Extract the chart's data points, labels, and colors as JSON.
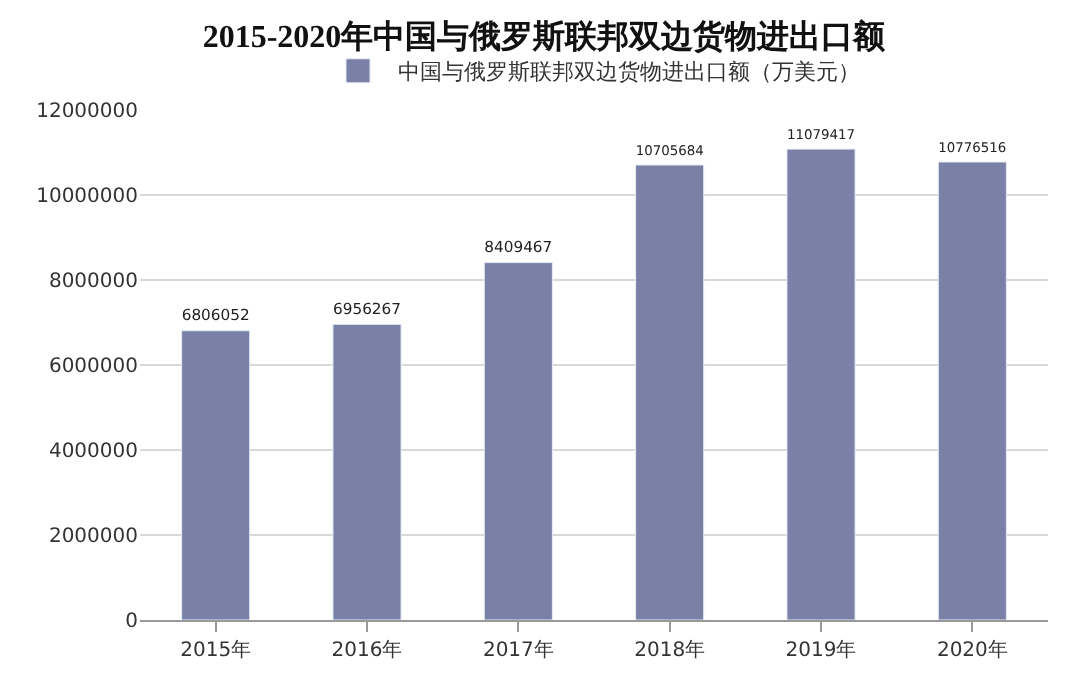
{
  "chart_data": {
    "type": "bar",
    "title": "2015-2020年中国与俄罗斯联邦双边货物进出口额",
    "categories": [
      "2015年",
      "2016年",
      "2017年",
      "2018年",
      "2019年",
      "2020年"
    ],
    "series": [
      {
        "name": "中国与俄罗斯联邦双边货物进出口额（万美元）",
        "color": "#7b80a6",
        "values": [
          6806052,
          6956267,
          8409467,
          10705684,
          11079417,
          10776516
        ]
      }
    ],
    "ylim": [
      0,
      12000000
    ],
    "yticks": [
      0,
      2000000,
      4000000,
      6000000,
      8000000,
      10000000,
      12000000
    ],
    "grid": "y",
    "legend": "top",
    "data_labels": true
  }
}
